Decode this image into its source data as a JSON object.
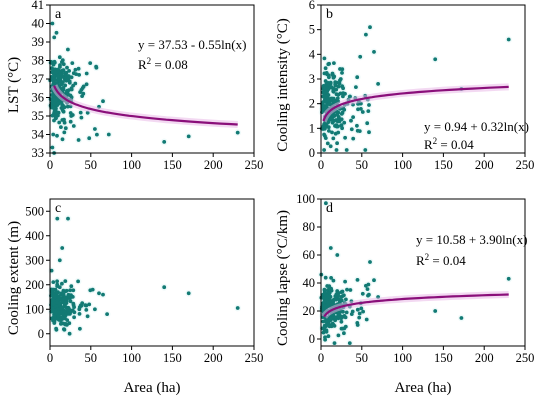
{
  "colors": {
    "points": "#127a74",
    "fit": "#8a0f7a",
    "band": "#e8b3e6",
    "axis": "#000000"
  },
  "chart_data": [
    {
      "type": "scatter",
      "id": "a",
      "panel_label": "a",
      "xlabel": "",
      "ylabel": "LST (°C)",
      "xlim": [
        0,
        250
      ],
      "ylim": [
        33,
        41
      ],
      "xticks": [
        0,
        50,
        100,
        150,
        200,
        250
      ],
      "yticks": [
        33,
        34,
        35,
        36,
        37,
        38,
        39,
        40,
        41
      ],
      "xtick_labels": [
        "0",
        "50",
        "100",
        "150",
        "200",
        "250"
      ],
      "ytick_labels": [
        "33",
        "34",
        "35",
        "36",
        "37",
        "38",
        "39",
        "40",
        "41"
      ],
      "equation": "y = 37.53 - 0.55ln(x)",
      "r2_label": "R",
      "r2_sup": "2",
      "r2_value": " = 0.08",
      "fit": {
        "model": "log",
        "a": 37.53,
        "b": -0.55,
        "x_range": [
          5,
          230
        ]
      },
      "cluster": {
        "x_mean": 13,
        "x_spread": 12,
        "y_center": 36.3,
        "y_spread": 1.5,
        "n": 260
      },
      "outliers": [
        [
          140,
          33.6
        ],
        [
          170,
          33.9
        ],
        [
          230,
          34.1
        ],
        [
          72,
          34.0
        ],
        [
          60,
          35.5
        ],
        [
          55,
          34.3
        ],
        [
          48,
          33.8
        ],
        [
          45,
          37.3
        ],
        [
          65,
          35.8
        ],
        [
          35,
          33.7
        ],
        [
          3,
          40.0
        ],
        [
          8,
          39.5
        ],
        [
          5,
          33.0
        ]
      ]
    },
    {
      "type": "scatter",
      "id": "b",
      "panel_label": "b",
      "xlabel": "",
      "ylabel": "Cooling intensity (°C)",
      "xlim": [
        0,
        250
      ],
      "ylim": [
        0,
        6
      ],
      "xticks": [
        0,
        50,
        100,
        150,
        200,
        250
      ],
      "yticks": [
        0,
        1,
        2,
        3,
        4,
        5,
        6
      ],
      "xtick_labels": [
        "0",
        "50",
        "100",
        "150",
        "200",
        "250"
      ],
      "ytick_labels": [
        "0",
        "1",
        "2",
        "3",
        "4",
        "5",
        "6"
      ],
      "equation": "y = 0.94 + 0.32ln(x)",
      "r2_label": "R",
      "r2_sup": "2",
      "r2_value": " = 0.04",
      "fit": {
        "model": "log",
        "a": 0.94,
        "b": 0.32,
        "x_range": [
          3,
          230
        ]
      },
      "cluster": {
        "x_mean": 15,
        "x_spread": 13,
        "y_center": 1.9,
        "y_spread": 1.2,
        "n": 260
      },
      "outliers": [
        [
          140,
          3.8
        ],
        [
          172,
          2.6
        ],
        [
          230,
          4.6
        ],
        [
          60,
          5.1
        ],
        [
          55,
          4.8
        ],
        [
          65,
          4.1
        ],
        [
          70,
          2.8
        ],
        [
          48,
          3.9
        ],
        [
          45,
          0.9
        ],
        [
          58,
          1.7
        ]
      ]
    },
    {
      "type": "scatter",
      "id": "c",
      "panel_label": "c",
      "xlabel": "Area (ha)",
      "ylabel": "Cooling extent (m)",
      "xlim": [
        0,
        250
      ],
      "ylim": [
        -50,
        550
      ],
      "xticks": [
        0,
        50,
        100,
        150,
        200,
        250
      ],
      "yticks": [
        0,
        100,
        200,
        300,
        400,
        500
      ],
      "xtick_labels": [
        "0",
        "50",
        "100",
        "150",
        "200",
        "250"
      ],
      "ytick_labels": [
        "0",
        "100",
        "200",
        "300",
        "400",
        "500"
      ],
      "cluster": {
        "x_mean": 14,
        "x_spread": 11,
        "y_center": 110,
        "y_spread": 70,
        "n": 240
      },
      "outliers": [
        [
          140,
          190
        ],
        [
          170,
          165
        ],
        [
          230,
          105
        ],
        [
          60,
          165
        ],
        [
          65,
          160
        ],
        [
          70,
          80
        ],
        [
          55,
          100
        ],
        [
          48,
          120
        ],
        [
          9,
          470
        ],
        [
          22,
          470
        ],
        [
          15,
          350
        ],
        [
          12,
          300
        ]
      ]
    },
    {
      "type": "scatter",
      "id": "d",
      "panel_label": "d",
      "xlabel": "Area (ha)",
      "ylabel": "Cooling lapse (°C/km)",
      "xlim": [
        0,
        250
      ],
      "ylim": [
        -5,
        100
      ],
      "xticks": [
        0,
        50,
        100,
        150,
        200,
        250
      ],
      "yticks": [
        0,
        20,
        40,
        60,
        80,
        100
      ],
      "xtick_labels": [
        "0",
        "50",
        "100",
        "150",
        "200",
        "250"
      ],
      "ytick_labels": [
        "0",
        "20",
        "40",
        "60",
        "80",
        "100"
      ],
      "equation": "y = 10.58 + 3.90ln(x)",
      "r2_label": "R",
      "r2_sup": "2",
      "r2_value": " = 0.04",
      "fit": {
        "model": "log",
        "a": 10.58,
        "b": 3.9,
        "x_range": [
          4,
          230
        ]
      },
      "cluster": {
        "x_mean": 15,
        "x_spread": 13,
        "y_center": 22,
        "y_spread": 14,
        "n": 260
      },
      "outliers": [
        [
          140,
          20
        ],
        [
          172,
          15
        ],
        [
          230,
          43
        ],
        [
          65,
          42
        ],
        [
          60,
          55
        ],
        [
          70,
          30
        ],
        [
          55,
          38
        ],
        [
          45,
          10
        ],
        [
          6,
          97
        ],
        [
          12,
          65
        ],
        [
          20,
          60
        ]
      ]
    }
  ]
}
